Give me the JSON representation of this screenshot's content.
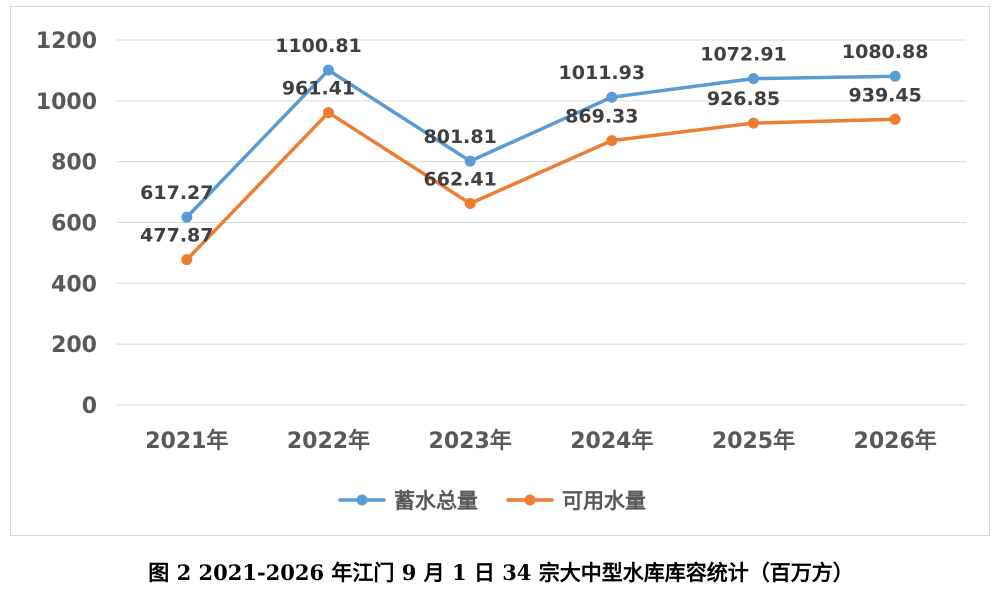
{
  "chart_data": {
    "type": "line",
    "categories": [
      "2021年",
      "2022年",
      "2023年",
      "2024年",
      "2025年",
      "2026年"
    ],
    "series": [
      {
        "name": "蓄水总量",
        "color": "#5b9bd5",
        "values": [
          617.27,
          1100.81,
          801.81,
          1011.93,
          1072.91,
          1080.88
        ],
        "labels": [
          "617.27",
          "1100.81",
          "801.81",
          "1011.93",
          "1072.91",
          "1080.88"
        ]
      },
      {
        "name": "可用水量",
        "color": "#ed7d31",
        "values": [
          477.87,
          961.41,
          662.41,
          869.33,
          926.85,
          939.45
        ],
        "labels": [
          "477.87",
          "961.41",
          "662.41",
          "869.33",
          "926.85",
          "939.45"
        ]
      }
    ],
    "ylim": [
      0,
      1200
    ],
    "yticks": [
      "0",
      "200",
      "400",
      "600",
      "800",
      "1000",
      "1200"
    ],
    "grid": true,
    "legend_position": "bottom"
  },
  "caption": "图 2 2021-2026 年江门 9 月 1 日 34 宗大中型水库库容统计（百万方）"
}
